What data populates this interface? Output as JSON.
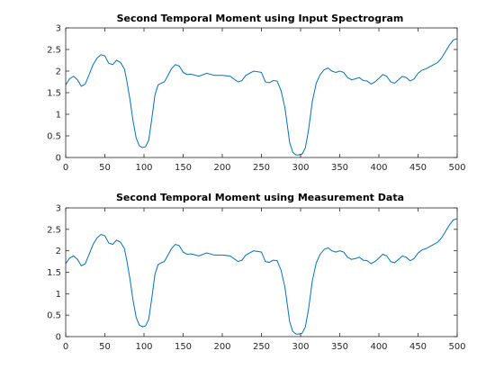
{
  "chart_data": [
    {
      "type": "line",
      "title": "Second Temporal Moment using Input Spectrogram",
      "xlabel": "",
      "ylabel": "",
      "xlim": [
        0,
        500
      ],
      "ylim": [
        0,
        3
      ],
      "xticks": [
        0,
        50,
        100,
        150,
        200,
        250,
        300,
        350,
        400,
        450,
        500
      ],
      "yticks": [
        0,
        0.5,
        1,
        1.5,
        2,
        2.5,
        3
      ],
      "grid": false,
      "color": "#0072BD",
      "series": [
        {
          "x": [
            0,
            5,
            10,
            15,
            20,
            25,
            30,
            35,
            40,
            45,
            50,
            55,
            60,
            65,
            70,
            75,
            78,
            82,
            86,
            90,
            94,
            98,
            102,
            106,
            110,
            114,
            118,
            122,
            126,
            130,
            135,
            140,
            145,
            150,
            155,
            160,
            170,
            180,
            190,
            200,
            210,
            220,
            225,
            230,
            240,
            250,
            255,
            260,
            265,
            270,
            275,
            280,
            283,
            286,
            290,
            294,
            298,
            302,
            306,
            310,
            315,
            320,
            325,
            330,
            335,
            340,
            345,
            350,
            355,
            360,
            365,
            370,
            375,
            380,
            385,
            390,
            395,
            400,
            405,
            410,
            415,
            420,
            425,
            430,
            435,
            440,
            445,
            450,
            455,
            460,
            465,
            470,
            475,
            480,
            485,
            490,
            495,
            500
          ],
          "y": [
            1.68,
            1.82,
            1.88,
            1.8,
            1.65,
            1.7,
            1.92,
            2.15,
            2.3,
            2.38,
            2.35,
            2.18,
            2.15,
            2.25,
            2.2,
            2.05,
            1.78,
            1.35,
            0.85,
            0.45,
            0.27,
            0.23,
            0.25,
            0.4,
            0.9,
            1.45,
            1.68,
            1.72,
            1.75,
            1.88,
            2.05,
            2.15,
            2.12,
            1.97,
            1.92,
            1.93,
            1.88,
            1.95,
            1.9,
            1.9,
            1.88,
            1.75,
            1.78,
            1.9,
            2.0,
            1.97,
            1.75,
            1.73,
            1.78,
            1.77,
            1.55,
            1.15,
            0.75,
            0.35,
            0.12,
            0.06,
            0.06,
            0.08,
            0.22,
            0.62,
            1.3,
            1.72,
            1.92,
            2.03,
            2.07,
            2.0,
            1.97,
            2.0,
            1.97,
            1.85,
            1.8,
            1.82,
            1.85,
            1.78,
            1.77,
            1.7,
            1.75,
            1.83,
            1.92,
            1.88,
            1.75,
            1.72,
            1.8,
            1.88,
            1.85,
            1.77,
            1.82,
            1.95,
            2.02,
            2.05,
            2.1,
            2.15,
            2.2,
            2.3,
            2.45,
            2.6,
            2.72,
            2.75
          ]
        }
      ]
    },
    {
      "type": "line",
      "title": "Second Temporal Moment using Measurement Data",
      "xlabel": "",
      "ylabel": "",
      "xlim": [
        0,
        500
      ],
      "ylim": [
        0,
        3
      ],
      "xticks": [
        0,
        50,
        100,
        150,
        200,
        250,
        300,
        350,
        400,
        450,
        500
      ],
      "yticks": [
        0,
        0.5,
        1,
        1.5,
        2,
        2.5,
        3
      ],
      "grid": false,
      "color": "#0072BD",
      "series": [
        {
          "x": [
            0,
            5,
            10,
            15,
            20,
            25,
            30,
            35,
            40,
            45,
            50,
            55,
            60,
            65,
            70,
            75,
            78,
            82,
            86,
            90,
            94,
            98,
            102,
            106,
            110,
            114,
            118,
            122,
            126,
            130,
            135,
            140,
            145,
            150,
            155,
            160,
            170,
            180,
            190,
            200,
            210,
            220,
            225,
            230,
            240,
            250,
            255,
            260,
            265,
            270,
            275,
            280,
            283,
            286,
            290,
            294,
            298,
            302,
            306,
            310,
            315,
            320,
            325,
            330,
            335,
            340,
            345,
            350,
            355,
            360,
            365,
            370,
            375,
            380,
            385,
            390,
            395,
            400,
            405,
            410,
            415,
            420,
            425,
            430,
            435,
            440,
            445,
            450,
            455,
            460,
            465,
            470,
            475,
            480,
            485,
            490,
            495,
            500
          ],
          "y": [
            1.7,
            1.83,
            1.88,
            1.8,
            1.65,
            1.7,
            1.92,
            2.15,
            2.3,
            2.38,
            2.35,
            2.18,
            2.15,
            2.25,
            2.2,
            2.05,
            1.78,
            1.35,
            0.85,
            0.45,
            0.27,
            0.23,
            0.25,
            0.4,
            0.9,
            1.45,
            1.68,
            1.72,
            1.75,
            1.88,
            2.05,
            2.15,
            2.12,
            1.97,
            1.92,
            1.93,
            1.88,
            1.95,
            1.9,
            1.9,
            1.88,
            1.75,
            1.78,
            1.9,
            2.0,
            1.97,
            1.75,
            1.73,
            1.78,
            1.77,
            1.55,
            1.15,
            0.75,
            0.35,
            0.12,
            0.06,
            0.06,
            0.08,
            0.22,
            0.62,
            1.3,
            1.72,
            1.92,
            2.03,
            2.07,
            2.0,
            1.97,
            2.0,
            1.97,
            1.85,
            1.8,
            1.82,
            1.85,
            1.78,
            1.77,
            1.7,
            1.75,
            1.83,
            1.92,
            1.88,
            1.75,
            1.72,
            1.8,
            1.88,
            1.85,
            1.77,
            1.82,
            1.95,
            2.02,
            2.05,
            2.1,
            2.15,
            2.2,
            2.3,
            2.45,
            2.6,
            2.72,
            2.75
          ]
        }
      ]
    }
  ]
}
